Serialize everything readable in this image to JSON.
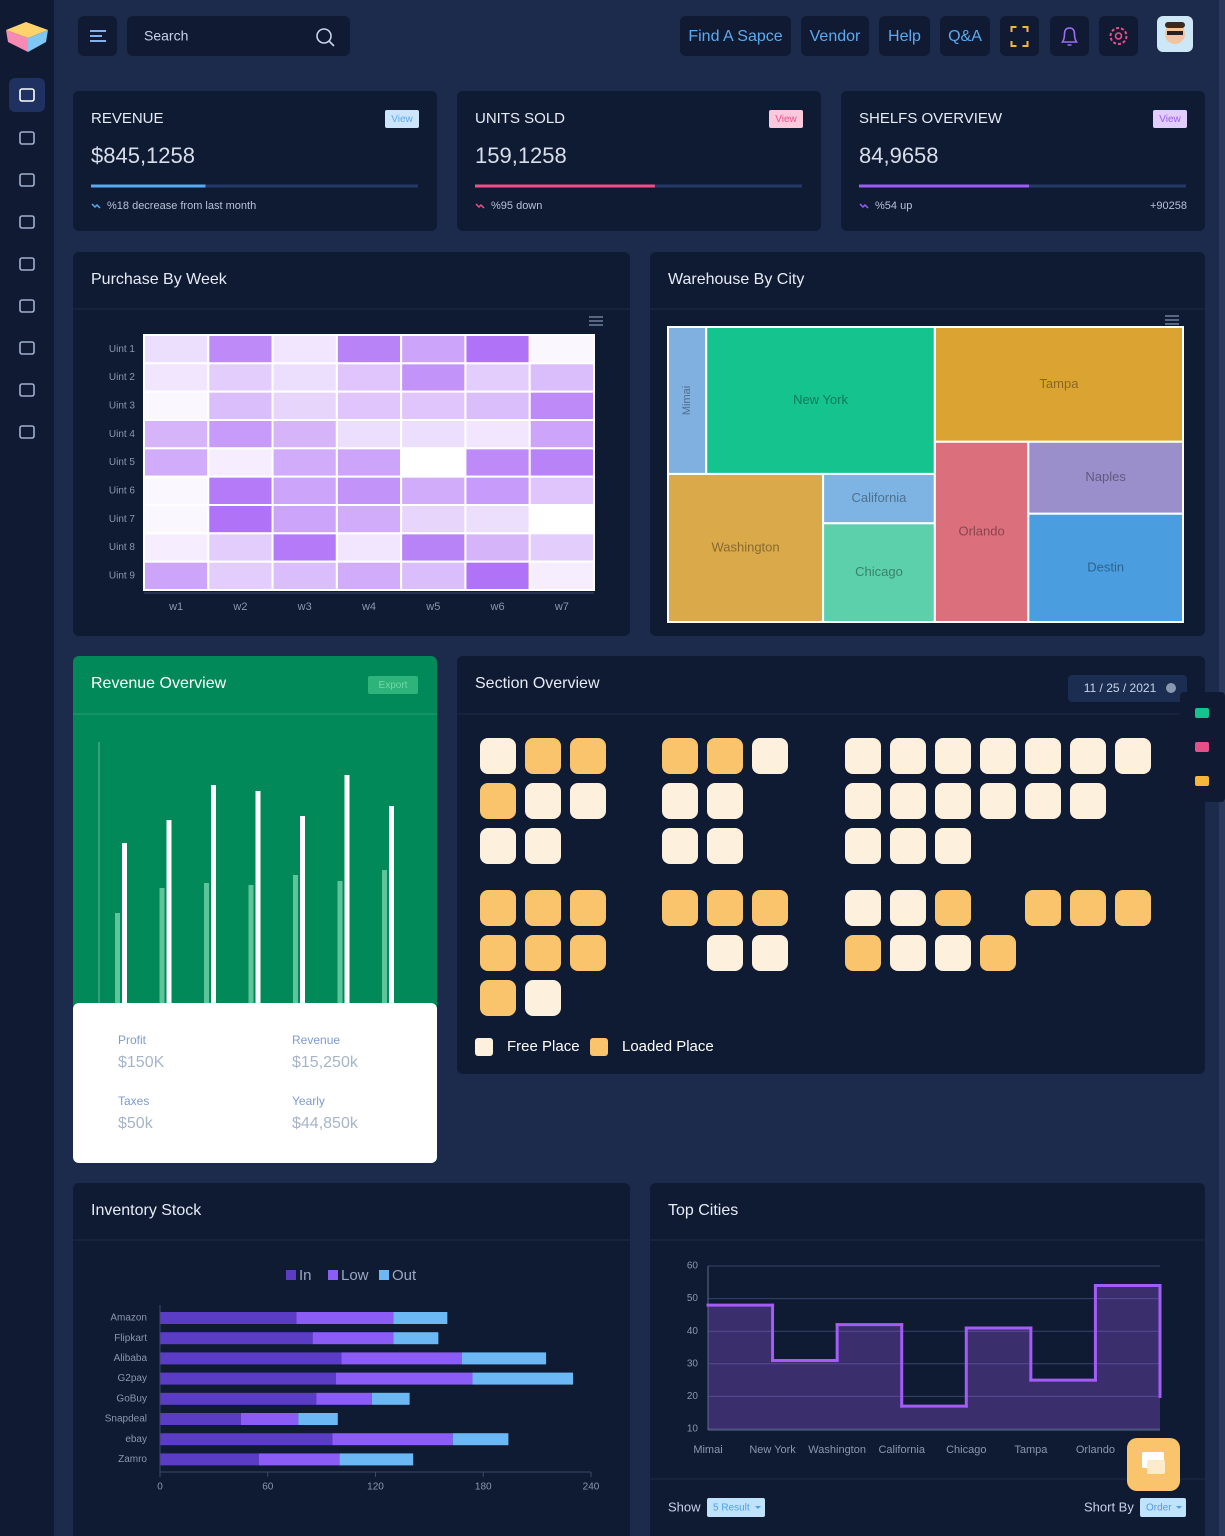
{
  "header": {
    "search": "Search",
    "nav": [
      "Find A Sapce",
      "Vendor",
      "Help",
      "Q&A"
    ]
  },
  "stats": [
    {
      "title": "REVENUE",
      "badge": "View",
      "value": "$845,1258",
      "note": "%18 decrease from last month",
      "progress": 35,
      "progress_lim": [
        0,
        100
      ],
      "color": "#5aaaf0"
    },
    {
      "title": "UNITS SOLD",
      "badge": "View",
      "value": "159,1258",
      "note": "%95 down",
      "progress": 55,
      "progress_lim": [
        0,
        100
      ],
      "color": "#f0508a"
    },
    {
      "title": "SHELFS OVERVIEW",
      "badge": "View",
      "value": "84,9658",
      "note": "%54 up",
      "extra": "+90258",
      "progress": 52,
      "progress_lim": [
        0,
        100
      ],
      "color": "#9b5cf6"
    }
  ],
  "chart_data": [
    {
      "type": "heatmap",
      "title": "Purchase By Week",
      "x": [
        "w1",
        "w2",
        "w3",
        "w4",
        "w5",
        "w6",
        "w7"
      ],
      "y": [
        "Uint 1",
        "Uint 2",
        "Uint 3",
        "Uint 4",
        "Uint 5",
        "Uint 6",
        "Uint 7",
        "Uint 8",
        "Uint 9"
      ],
      "values": [
        [
          20,
          70,
          15,
          75,
          55,
          85,
          5
        ],
        [
          15,
          30,
          20,
          35,
          65,
          30,
          40
        ],
        [
          5,
          40,
          25,
          35,
          35,
          40,
          70
        ],
        [
          45,
          60,
          45,
          20,
          20,
          15,
          55
        ],
        [
          50,
          10,
          50,
          55,
          0,
          70,
          75
        ],
        [
          5,
          80,
          55,
          65,
          50,
          60,
          35
        ],
        [
          5,
          85,
          55,
          50,
          25,
          20,
          0
        ],
        [
          10,
          30,
          80,
          15,
          75,
          45,
          30
        ],
        [
          55,
          30,
          40,
          50,
          40,
          85,
          10
        ]
      ],
      "zlim": [
        0,
        100
      ],
      "color": "#a259f5"
    },
    {
      "type": "treemap",
      "title": "Warehouse By City",
      "categories": [
        "Mimai",
        "New York",
        "Washington",
        "California",
        "Chicago",
        "Tampa",
        "Orlando",
        "Naples",
        "Destin"
      ],
      "values": [
        56,
        335,
        229,
        55,
        110,
        284,
        168,
        111,
        167
      ],
      "colors": [
        "#7fb0e0",
        "#14c38e",
        "#d9a94a",
        "#7eb4e3",
        "#5ccfab",
        "#dba432",
        "#dc6f7c",
        "#9b8fcb",
        "#4a9ee0"
      ]
    },
    {
      "type": "bar",
      "title": "Revenue Overview",
      "badge": "Export",
      "series": [
        {
          "color": "#ffffff",
          "values": [
            160,
            183,
            218,
            212,
            187,
            228,
            197
          ]
        },
        {
          "color": "#5fc49a",
          "values": [
            90,
            115,
            120,
            118,
            128,
            122,
            133
          ]
        }
      ],
      "stats": [
        {
          "label": "Profit",
          "value": "$150K"
        },
        {
          "label": "Revenue",
          "value": "$15,250k"
        },
        {
          "label": "Taxes",
          "value": "$50k"
        },
        {
          "label": "Yearly",
          "value": "$44,850k"
        }
      ]
    },
    {
      "type": "hbar",
      "title": "Inventory Stock",
      "stacked": true,
      "categories": [
        "Amazon",
        "Flipkart",
        "Alibaba",
        "G2pay",
        "GoBuy",
        "Snapdeal",
        "ebay",
        "Zamro"
      ],
      "series": [
        {
          "name": "In",
          "color": "#5b3cc4",
          "values": [
            76,
            85,
            101,
            98,
            87,
            45,
            96,
            55
          ]
        },
        {
          "name": "Low",
          "color": "#8b5cf6",
          "values": [
            54,
            45,
            67,
            76,
            31,
            32,
            67,
            45
          ]
        },
        {
          "name": "Out",
          "color": "#6cb8f5",
          "values": [
            30,
            25,
            47,
            56,
            21,
            22,
            31,
            41
          ]
        }
      ],
      "xlim": [
        0,
        240
      ],
      "xticks": [
        0,
        60,
        120,
        180,
        240
      ]
    },
    {
      "type": "step",
      "title": "Top Cities",
      "categories": [
        "Mimai",
        "New York",
        "Washington",
        "California",
        "Chicago",
        "Tampa",
        "Orlando",
        null
      ],
      "values": [
        48,
        31,
        42,
        17,
        41,
        25,
        54,
        20
      ],
      "color": "#a35cf6",
      "ylim": [
        10,
        60
      ],
      "yticks": [
        10,
        20,
        30,
        40,
        50,
        60
      ],
      "grid": true,
      "controls": [
        {
          "label": "Show",
          "value": "5 Result"
        },
        {
          "label": "Short By",
          "value": "Order"
        }
      ]
    }
  ],
  "section_overview": {
    "title": "Section Overview",
    "date": "11 / 25 / 2021",
    "blocks": [
      [
        [
          false,
          true,
          true
        ],
        [
          true,
          false,
          false
        ],
        [
          false,
          false
        ]
      ],
      [
        [
          true,
          true,
          false
        ],
        [
          false,
          false
        ],
        [
          false,
          false
        ]
      ],
      [
        [
          false,
          false,
          false,
          false,
          false,
          false,
          false
        ],
        [
          false,
          false,
          false,
          false,
          false,
          false
        ],
        [
          false,
          false,
          false
        ]
      ],
      [
        [
          true,
          true,
          true
        ],
        [
          true,
          true,
          true
        ],
        [
          true,
          false
        ]
      ],
      [
        [
          true,
          true,
          true
        ],
        [
          null,
          false,
          false
        ]
      ],
      [
        [
          false,
          false,
          true,
          null,
          true,
          true,
          true
        ],
        [
          true,
          false,
          false,
          true
        ]
      ]
    ],
    "legend": [
      {
        "name": "Free Place",
        "color": "#fdf0dc"
      },
      {
        "name": "Loaded Place",
        "color": "#f9c46b"
      }
    ]
  }
}
